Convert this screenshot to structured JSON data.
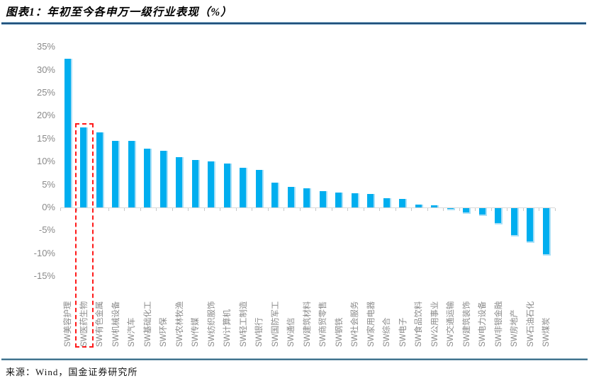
{
  "header": {
    "title": "图表1：年初至今各申万一级行业表现（%）"
  },
  "footer": {
    "source": "来源：Wind，国金证券研究所"
  },
  "colors": {
    "bar_fill": "#00aeef",
    "bar_edge": "#a8dff7",
    "axis_line": "#d9d9d9",
    "tick_label": "#8a8a8a",
    "title_rule_blue": "#1f4e79",
    "footer_rule_teal": "#2e637f",
    "highlight_red": "#ff1a1a"
  },
  "chart_data": {
    "type": "bar",
    "title": "年初至今各申万一级行业表现（%）",
    "xlabel": "",
    "ylabel": "",
    "ylim": [
      -15,
      35
    ],
    "grid": false,
    "legend": "none",
    "bar_color": "#00aeef",
    "yticks": [
      "35%",
      "30%",
      "25%",
      "20%",
      "15%",
      "10%",
      "5%",
      "0%",
      "-5%",
      "-10%",
      "-15%"
    ],
    "ytick_values": [
      35,
      30,
      25,
      20,
      15,
      10,
      5,
      0,
      -5,
      -10,
      -15
    ],
    "categories": [
      "SW美容护理",
      "SW医药生物",
      "SW有色金属",
      "SW机械设备",
      "SW汽车",
      "SW基础化工",
      "SW环保",
      "SW农林牧渔",
      "SW传媒",
      "SW纺织服饰",
      "SW计算机",
      "SW轻工制造",
      "SW银行",
      "SW国防军工",
      "SW通信",
      "SW建筑材料",
      "SW商贸零售",
      "SW钢铁",
      "SW社会服务",
      "SW家用电器",
      "SW综合",
      "SW电子",
      "SW食品饮料",
      "SW公用事业",
      "SW交通运输",
      "SW建筑装饰",
      "SW电力设备",
      "SW非银金融",
      "SW房地产",
      "SW石油石化",
      "SW煤炭"
    ],
    "values": [
      32.4,
      17.5,
      16.3,
      14.5,
      14.5,
      12.8,
      12.4,
      11.0,
      10.3,
      10.0,
      9.6,
      8.7,
      8.2,
      5.4,
      4.4,
      4.1,
      3.6,
      3.2,
      3.1,
      2.9,
      2.0,
      1.8,
      0.6,
      0.5,
      -0.5,
      -1.2,
      -1.7,
      -3.6,
      -6.1,
      -7.5,
      -10.4
    ],
    "highlight": {
      "category": "SW医药生物",
      "index": 1,
      "style": "red-dashed-box"
    }
  }
}
